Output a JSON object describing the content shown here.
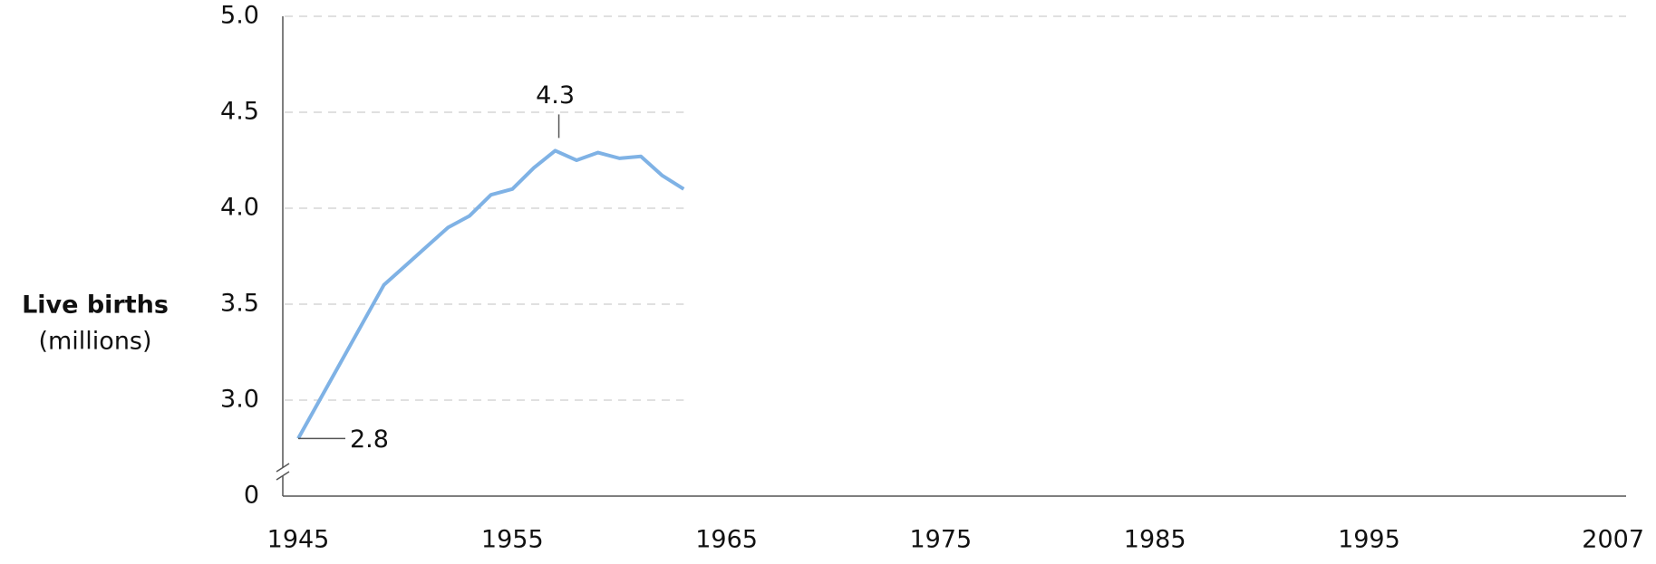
{
  "chart_data": {
    "type": "line",
    "y_label": "Live births",
    "y_label_unit": "(millions)",
    "x": [
      1945,
      1946,
      1947,
      1948,
      1949,
      1950,
      1951,
      1952,
      1953,
      1954,
      1955,
      1956,
      1957,
      1958,
      1959,
      1960,
      1961,
      1962,
      1963
    ],
    "series": [
      {
        "name": "Live births",
        "color": "#7fb2e5",
        "values": [
          2.8,
          3.0,
          3.2,
          3.4,
          3.6,
          3.7,
          3.8,
          3.9,
          3.96,
          4.07,
          4.1,
          4.21,
          4.3,
          4.25,
          4.29,
          4.26,
          4.27,
          4.17,
          4.1
        ]
      }
    ],
    "xlim": [
      1945,
      2007
    ],
    "xticks": [
      1945,
      1955,
      1965,
      1975,
      1985,
      1995,
      2007
    ],
    "ylim": [
      0,
      5
    ],
    "ybreak": [
      0,
      2.5
    ],
    "yticks": [
      0,
      {
        "value": 3,
        "label": "3.0"
      },
      3.5,
      {
        "value": 4,
        "label": "4.0"
      },
      4.5,
      {
        "value": 5,
        "label": "5.0"
      }
    ],
    "grid": true,
    "annotations": [
      {
        "x": 1957,
        "y": 4.3,
        "label": "4.3"
      },
      {
        "x": 1945,
        "y": 2.8,
        "label": "2.8"
      }
    ]
  }
}
